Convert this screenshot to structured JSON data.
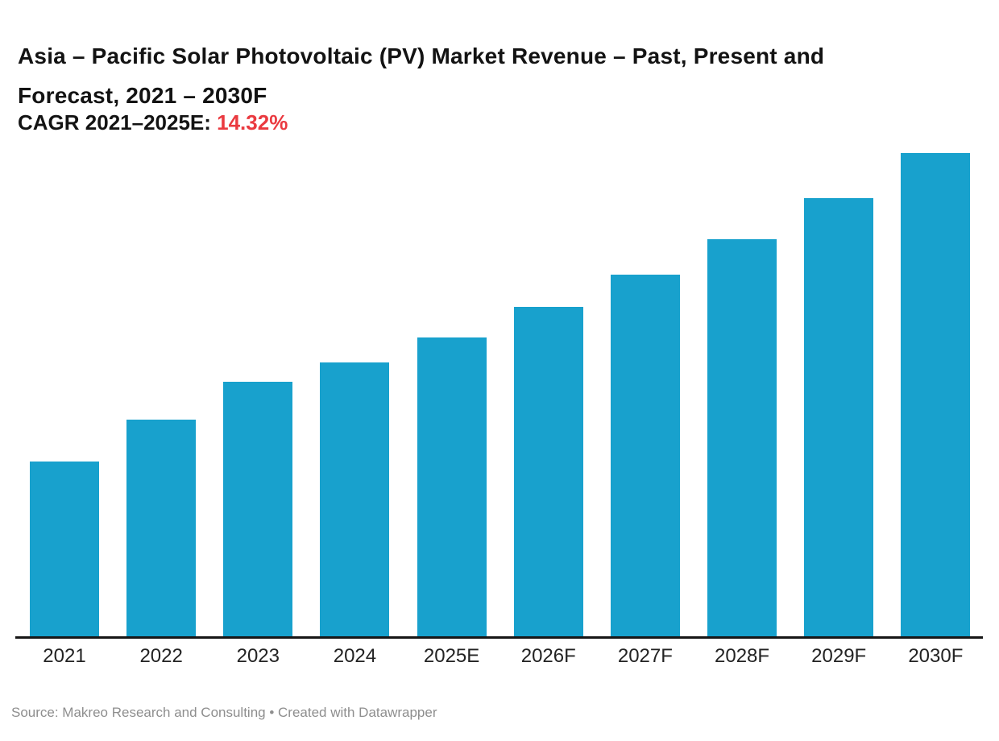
{
  "title": {
    "lines": [
      "Asia – Pacific Solar Photovoltaic (PV) Market Revenue – Past, Present and",
      "Forecast, 2021 – 2030F"
    ]
  },
  "subtitle": {
    "label": "CAGR 2021–2025E: ",
    "value": "14.32%",
    "value_color": "#ea3a40",
    "label_color": "#131313"
  },
  "source": "Source: Makreo Research and Consulting • Created with Datawrapper",
  "chart_data": {
    "type": "bar",
    "title": "Asia – Pacific Solar Photovoltaic (PV) Market Revenue – Past, Present and Forecast, 2021 – 2030F",
    "categories": [
      "2021",
      "2022",
      "2023",
      "2024",
      "2025E",
      "2026F",
      "2027F",
      "2028F",
      "2029F",
      "2030F"
    ],
    "values": [
      217,
      269,
      316,
      340,
      371,
      409,
      449,
      493,
      544,
      600
    ],
    "unit": "relative bar height in px (chart displays no y-axis or value labels)",
    "indexed_2021_base_100": [
      100,
      124,
      146,
      157,
      171,
      188,
      207,
      227,
      251,
      276
    ],
    "cagr_2021_2025E": "14.32%",
    "xlabel": "",
    "ylabel": "",
    "ylim": [
      0,
      600
    ],
    "grid": false,
    "legend": false,
    "bar_color": "#18a1cd",
    "axis_color": "#161616"
  }
}
